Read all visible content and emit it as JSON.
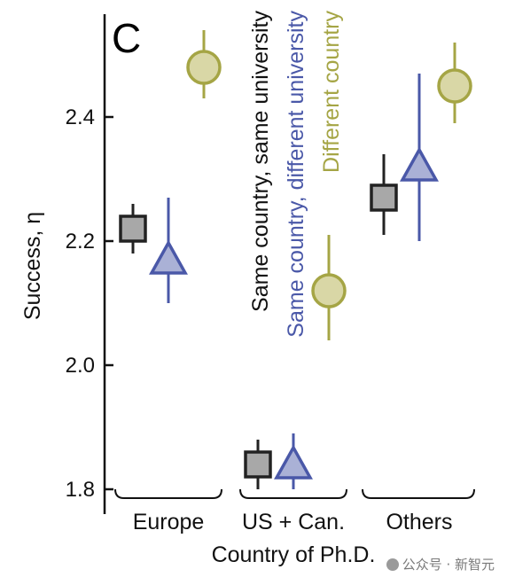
{
  "panel_label": "C",
  "watermark": "公众号 · 新智元",
  "colors": {
    "same_same": {
      "fill": "#a8a8a8",
      "stroke": "#222222"
    },
    "same_diff": {
      "fill": "#aab1d6",
      "stroke": "#4a58a8"
    },
    "diff_country": {
      "fill": "#d9d7a6",
      "stroke": "#a5a545"
    },
    "axis": "#111111"
  },
  "chart_data": {
    "type": "scatter",
    "title": "",
    "ylabel": "Success, η",
    "xlabel": "Country of Ph.D.",
    "ylim": [
      1.8,
      2.55
    ],
    "yticks": [
      1.8,
      2.0,
      2.2,
      2.4
    ],
    "ytick_labels": [
      "1.8",
      "2.0",
      "2.2",
      "2.4"
    ],
    "categories": [
      "Europe",
      "US + Can.",
      "Others"
    ],
    "grid": false,
    "legend": "inline-vertical-labels",
    "series": [
      {
        "name": "Same country, same university",
        "marker": "square",
        "values": [
          2.22,
          1.84,
          2.27
        ],
        "lower": [
          2.18,
          1.8,
          2.21
        ],
        "upper": [
          2.26,
          1.88,
          2.34
        ]
      },
      {
        "name": "Same country, different university",
        "marker": "triangle",
        "values": [
          2.17,
          1.84,
          2.32
        ],
        "lower": [
          2.1,
          1.8,
          2.2
        ],
        "upper": [
          2.27,
          1.89,
          2.47
        ]
      },
      {
        "name": "Different country",
        "marker": "circle",
        "values": [
          2.48,
          2.12,
          2.45
        ],
        "lower": [
          2.43,
          2.04,
          2.39
        ],
        "upper": [
          2.54,
          2.21,
          2.52
        ]
      }
    ]
  }
}
